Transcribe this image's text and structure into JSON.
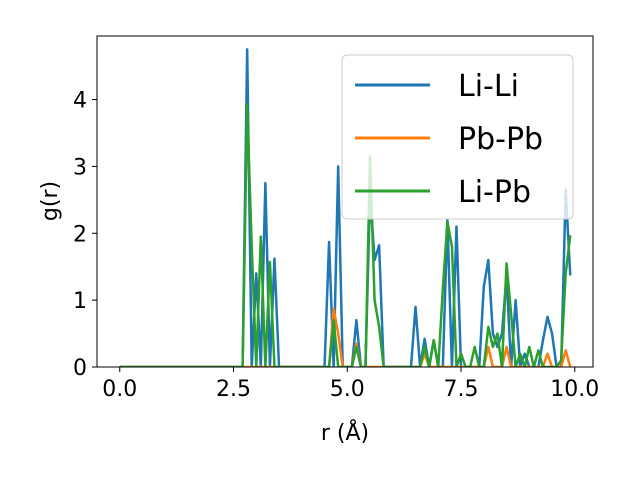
{
  "chart_data": {
    "type": "line",
    "xlabel": "r (Å)",
    "ylabel": "g(r)",
    "xlim": [
      -0.5,
      10.4
    ],
    "ylim": [
      0,
      4.95
    ],
    "xticks": [
      0.0,
      2.5,
      5.0,
      7.5,
      10.0
    ],
    "xtick_labels": [
      "0.0",
      "2.5",
      "5.0",
      "7.5",
      "10.0"
    ],
    "yticks": [
      0,
      1,
      2,
      3,
      4
    ],
    "ytick_labels": [
      "0",
      "1",
      "2",
      "3",
      "4"
    ],
    "grid": false,
    "legend_position": "upper right",
    "series": [
      {
        "name": "Li-Li",
        "color": "#1f77b4",
        "points": [
          [
            0.0,
            0
          ],
          [
            2.6,
            0
          ],
          [
            2.7,
            0
          ],
          [
            2.8,
            4.75
          ],
          [
            2.9,
            0
          ],
          [
            3.0,
            1.4
          ],
          [
            3.1,
            0
          ],
          [
            3.2,
            2.75
          ],
          [
            3.3,
            0
          ],
          [
            3.4,
            1.62
          ],
          [
            3.5,
            0
          ],
          [
            4.4,
            0
          ],
          [
            4.5,
            0
          ],
          [
            4.6,
            1.87
          ],
          [
            4.7,
            0
          ],
          [
            4.8,
            3.0
          ],
          [
            4.9,
            0
          ],
          [
            5.1,
            0
          ],
          [
            5.2,
            0.7
          ],
          [
            5.3,
            0
          ],
          [
            5.4,
            0
          ],
          [
            5.5,
            2.6
          ],
          [
            5.6,
            1.6
          ],
          [
            5.7,
            1.82
          ],
          [
            5.8,
            0
          ],
          [
            6.4,
            0
          ],
          [
            6.5,
            0.9
          ],
          [
            6.6,
            0
          ],
          [
            6.7,
            0.42
          ],
          [
            6.8,
            0
          ],
          [
            6.9,
            0.4
          ],
          [
            7.0,
            0
          ],
          [
            7.1,
            0
          ],
          [
            7.2,
            2.2
          ],
          [
            7.3,
            0
          ],
          [
            7.4,
            2.1
          ],
          [
            7.5,
            0
          ],
          [
            7.9,
            0
          ],
          [
            8.0,
            1.2
          ],
          [
            8.1,
            1.6
          ],
          [
            8.2,
            0.5
          ],
          [
            8.3,
            0.3
          ],
          [
            8.4,
            0.5
          ],
          [
            8.5,
            1.37
          ],
          [
            8.6,
            0
          ],
          [
            8.7,
            1.0
          ],
          [
            8.8,
            0
          ],
          [
            8.9,
            0.2
          ],
          [
            9.0,
            0
          ],
          [
            9.2,
            0
          ],
          [
            9.3,
            0.4
          ],
          [
            9.4,
            0.75
          ],
          [
            9.5,
            0.5
          ],
          [
            9.6,
            0
          ],
          [
            9.7,
            0
          ],
          [
            9.8,
            2.65
          ],
          [
            9.9,
            1.37
          ]
        ]
      },
      {
        "name": "Pb-Pb",
        "color": "#ff7f0e",
        "points": [
          [
            0.0,
            0
          ],
          [
            4.6,
            0
          ],
          [
            4.7,
            0.87
          ],
          [
            4.8,
            0.5
          ],
          [
            4.9,
            0
          ],
          [
            5.1,
            0
          ],
          [
            5.2,
            0.35
          ],
          [
            5.3,
            0
          ],
          [
            6.6,
            0
          ],
          [
            6.7,
            0.2
          ],
          [
            6.8,
            0
          ],
          [
            8.0,
            0
          ],
          [
            8.1,
            0.3
          ],
          [
            8.2,
            0
          ],
          [
            8.4,
            0
          ],
          [
            8.5,
            0.3
          ],
          [
            8.6,
            0
          ],
          [
            9.3,
            0
          ],
          [
            9.4,
            0.2
          ],
          [
            9.5,
            0
          ],
          [
            9.7,
            0
          ],
          [
            9.8,
            0.25
          ],
          [
            9.9,
            0
          ]
        ]
      },
      {
        "name": "Li-Pb",
        "color": "#2ca02c",
        "points": [
          [
            0.0,
            0
          ],
          [
            2.7,
            0
          ],
          [
            2.8,
            3.93
          ],
          [
            2.9,
            1.8
          ],
          [
            3.0,
            0
          ],
          [
            3.1,
            1.95
          ],
          [
            3.2,
            0
          ],
          [
            3.3,
            1.57
          ],
          [
            3.4,
            0
          ],
          [
            4.6,
            0
          ],
          [
            4.7,
            0.7
          ],
          [
            4.8,
            0
          ],
          [
            5.1,
            0
          ],
          [
            5.2,
            0.3
          ],
          [
            5.3,
            0
          ],
          [
            5.4,
            0
          ],
          [
            5.5,
            3.15
          ],
          [
            5.6,
            1.0
          ],
          [
            5.7,
            0.6
          ],
          [
            5.8,
            0
          ],
          [
            6.6,
            0
          ],
          [
            6.7,
            0.3
          ],
          [
            6.8,
            0
          ],
          [
            6.9,
            0.4
          ],
          [
            7.0,
            0
          ],
          [
            7.1,
            1.17
          ],
          [
            7.2,
            2.17
          ],
          [
            7.3,
            1.8
          ],
          [
            7.4,
            0
          ],
          [
            7.5,
            0.2
          ],
          [
            7.6,
            0
          ],
          [
            7.7,
            0
          ],
          [
            7.8,
            0.3
          ],
          [
            7.9,
            0
          ],
          [
            8.0,
            0
          ],
          [
            8.1,
            0.6
          ],
          [
            8.2,
            0.3
          ],
          [
            8.3,
            0.5
          ],
          [
            8.4,
            0
          ],
          [
            8.5,
            1.55
          ],
          [
            8.6,
            0.8
          ],
          [
            8.7,
            0
          ],
          [
            8.8,
            0.2
          ],
          [
            8.9,
            0
          ],
          [
            9.0,
            0.3
          ],
          [
            9.1,
            0
          ],
          [
            9.2,
            0.25
          ],
          [
            9.3,
            0
          ],
          [
            9.6,
            0
          ],
          [
            9.7,
            0.1
          ],
          [
            9.8,
            1.4
          ],
          [
            9.9,
            1.97
          ]
        ]
      }
    ]
  }
}
